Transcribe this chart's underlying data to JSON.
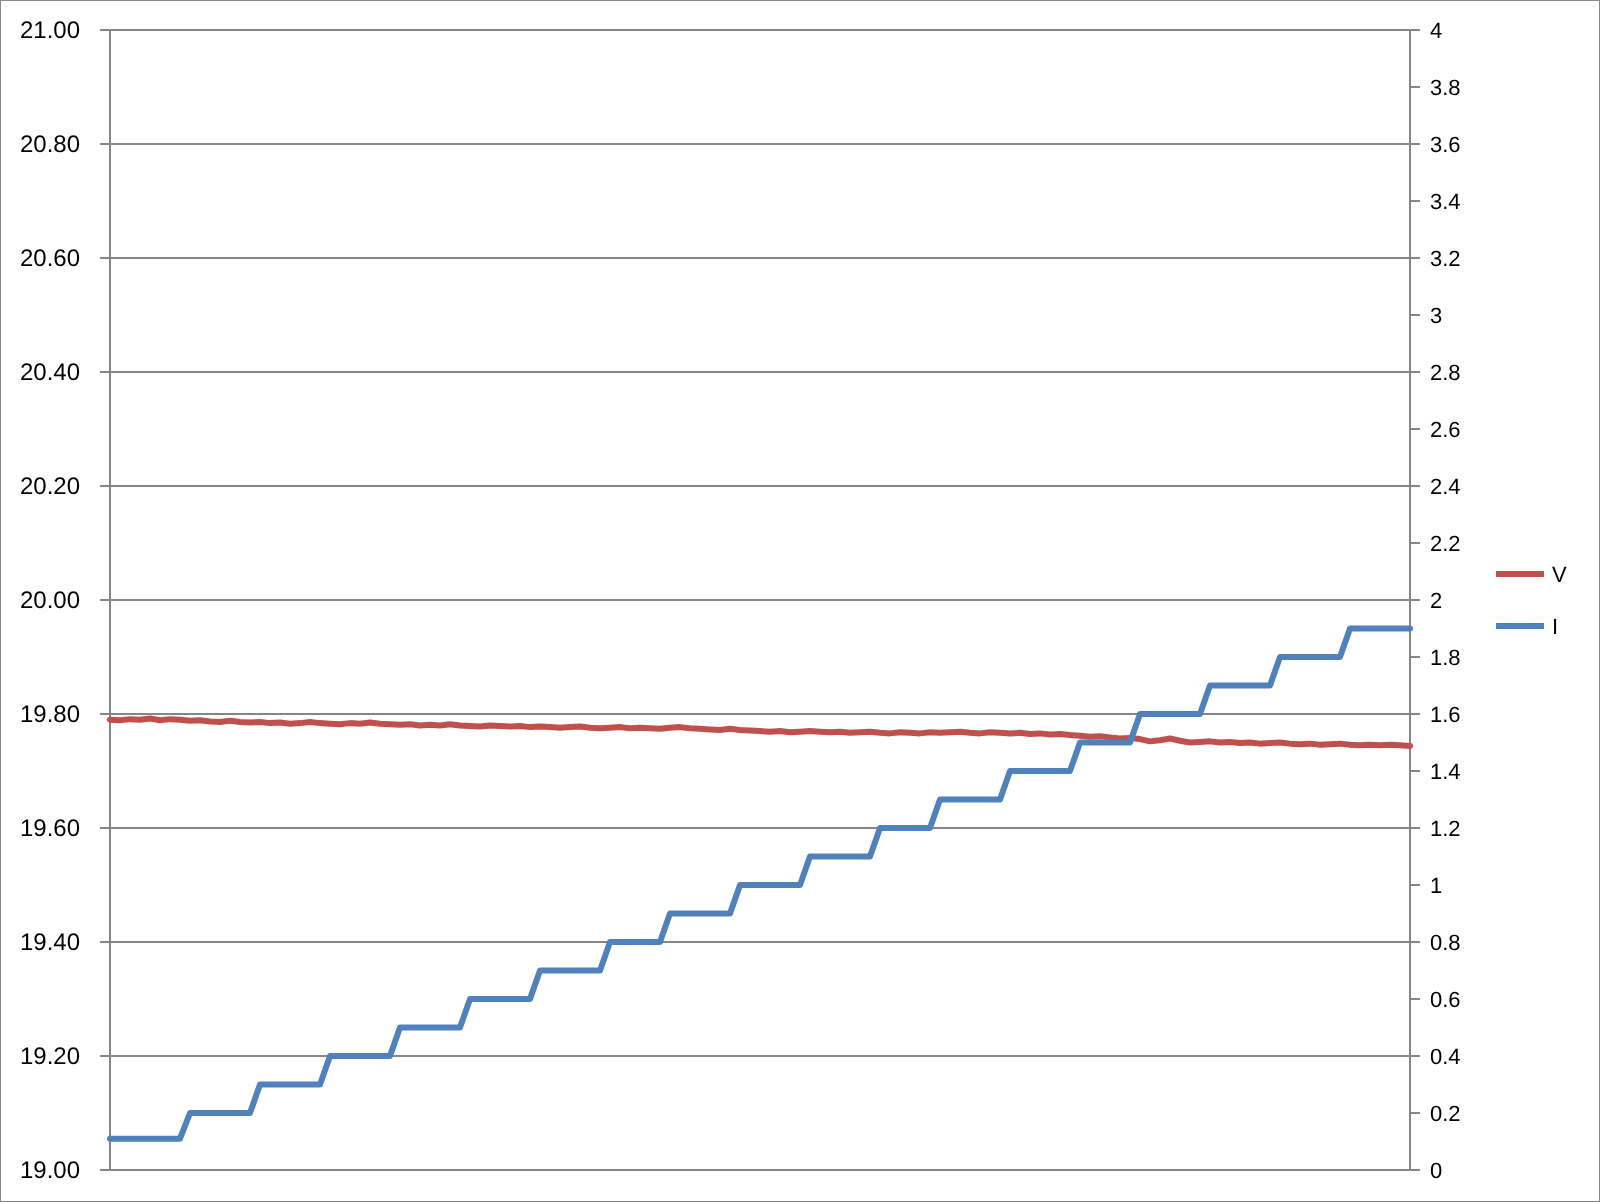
{
  "chart_data": {
    "type": "line",
    "categories": [
      null,
      null,
      null,
      null,
      null,
      null,
      null,
      null,
      null,
      null,
      null,
      null,
      null,
      null,
      null,
      null,
      null,
      null,
      null,
      null,
      null,
      null,
      null,
      null,
      null,
      null,
      null,
      null,
      null,
      null,
      null,
      null,
      null,
      null,
      null,
      null,
      null,
      null,
      null,
      null,
      null,
      null,
      null,
      null,
      null,
      null,
      null,
      null,
      null,
      null,
      null,
      null,
      null,
      null,
      null,
      null,
      null,
      null,
      null,
      null,
      null,
      null,
      null,
      null,
      null,
      null,
      null,
      null,
      null,
      null,
      null,
      null,
      null,
      null,
      null,
      null,
      null,
      null,
      null,
      null,
      null,
      null,
      null,
      null,
      null,
      null,
      null,
      null,
      null,
      null,
      null,
      null,
      null,
      null,
      null,
      null,
      null,
      null,
      null,
      null,
      null,
      null,
      null,
      null,
      null,
      null,
      null,
      null,
      null,
      null,
      null,
      null,
      null,
      null,
      null,
      null,
      null,
      null,
      null,
      null,
      null,
      null,
      null,
      null,
      null,
      null,
      null,
      null,
      null,
      null,
      null
    ],
    "series": [
      {
        "name": "V",
        "color": "#c0504d",
        "values": [
          19.79,
          19.789,
          19.791,
          19.79,
          19.792,
          19.789,
          19.791,
          19.79,
          19.788,
          19.789,
          19.787,
          19.786,
          19.788,
          19.786,
          19.785,
          19.786,
          19.784,
          19.785,
          19.783,
          19.784,
          19.786,
          19.784,
          19.783,
          19.782,
          19.784,
          19.783,
          19.785,
          19.783,
          19.782,
          19.781,
          19.782,
          19.78,
          19.781,
          19.78,
          19.782,
          19.78,
          19.779,
          19.778,
          19.78,
          19.779,
          19.778,
          19.779,
          19.777,
          19.778,
          19.777,
          19.776,
          19.777,
          19.778,
          19.776,
          19.775,
          19.776,
          19.777,
          19.775,
          19.776,
          19.775,
          19.774,
          19.776,
          19.777,
          19.775,
          19.774,
          19.773,
          19.772,
          19.774,
          19.772,
          19.771,
          19.77,
          19.769,
          19.77,
          19.768,
          19.769,
          19.77,
          19.769,
          19.768,
          19.769,
          19.767,
          19.768,
          19.769,
          19.767,
          19.766,
          19.768,
          19.767,
          19.766,
          19.768,
          19.767,
          19.768,
          19.769,
          19.767,
          19.766,
          19.768,
          19.767,
          19.766,
          19.767,
          19.765,
          19.766,
          19.764,
          19.765,
          19.763,
          19.762,
          19.76,
          19.761,
          19.759,
          19.757,
          19.758,
          19.756,
          19.752,
          19.754,
          19.757,
          19.753,
          19.75,
          19.751,
          19.752,
          19.75,
          19.751,
          19.749,
          19.75,
          19.748,
          19.749,
          19.75,
          19.748,
          19.747,
          19.748,
          19.746,
          19.747,
          19.748,
          19.746,
          19.745,
          19.746,
          19.745,
          19.746,
          19.745,
          19.744
        ]
      },
      {
        "name": "I",
        "color": "#4f81bd",
        "axis": "y2",
        "values": [
          0.11,
          0.11,
          0.11,
          0.11,
          0.11,
          0.11,
          0.11,
          0.11,
          0.2,
          0.2,
          0.2,
          0.2,
          0.2,
          0.2,
          0.2,
          0.3,
          0.3,
          0.3,
          0.3,
          0.3,
          0.3,
          0.3,
          0.4,
          0.4,
          0.4,
          0.4,
          0.4,
          0.4,
          0.4,
          0.5,
          0.5,
          0.5,
          0.5,
          0.5,
          0.5,
          0.5,
          0.6,
          0.6,
          0.6,
          0.6,
          0.6,
          0.6,
          0.6,
          0.7,
          0.7,
          0.7,
          0.7,
          0.7,
          0.7,
          0.7,
          0.8,
          0.8,
          0.8,
          0.8,
          0.8,
          0.8,
          0.9,
          0.9,
          0.9,
          0.9,
          0.9,
          0.9,
          0.9,
          1,
          1,
          1,
          1,
          1,
          1,
          1,
          1.1,
          1.1,
          1.1,
          1.1,
          1.1,
          1.1,
          1.1,
          1.2,
          1.2,
          1.2,
          1.2,
          1.2,
          1.2,
          1.3,
          1.3,
          1.3,
          1.3,
          1.3,
          1.3,
          1.3,
          1.4,
          1.4,
          1.4,
          1.4,
          1.4,
          1.4,
          1.4,
          1.5,
          1.5,
          1.5,
          1.5,
          1.5,
          1.5,
          1.6,
          1.6,
          1.6,
          1.6,
          1.6,
          1.6,
          1.6,
          1.7,
          1.7,
          1.7,
          1.7,
          1.7,
          1.7,
          1.7,
          1.8,
          1.8,
          1.8,
          1.8,
          1.8,
          1.8,
          1.8,
          1.9,
          1.9,
          1.9,
          1.9,
          1.9,
          1.9,
          1.9
        ]
      }
    ],
    "ylim": [
      19,
      21
    ],
    "yticks": [
      {
        "value": 19,
        "label": "19.00"
      },
      {
        "value": 19.2,
        "label": "19.20"
      },
      {
        "value": 19.4,
        "label": "19.40"
      },
      {
        "value": 19.6,
        "label": "19.60"
      },
      {
        "value": 19.8,
        "label": "19.80"
      },
      {
        "value": 20,
        "label": "20.00"
      },
      {
        "value": 20.2,
        "label": "20.20"
      },
      {
        "value": 20.4,
        "label": "20.40"
      },
      {
        "value": 20.6,
        "label": "20.60"
      },
      {
        "value": 20.8,
        "label": "20.80"
      },
      {
        "value": 21,
        "label": "21.00"
      }
    ],
    "y2lim": [
      0,
      4
    ],
    "y2ticks": [
      0,
      0.2,
      0.4,
      0.6,
      0.8,
      1,
      1.2,
      1.4,
      1.6,
      1.8,
      2,
      2.2,
      2.4,
      2.6,
      2.8,
      3,
      3.2,
      3.4,
      3.6,
      3.8,
      4
    ],
    "grid": "y",
    "legend": "right",
    "marker": "none",
    "line_style": "solid"
  }
}
